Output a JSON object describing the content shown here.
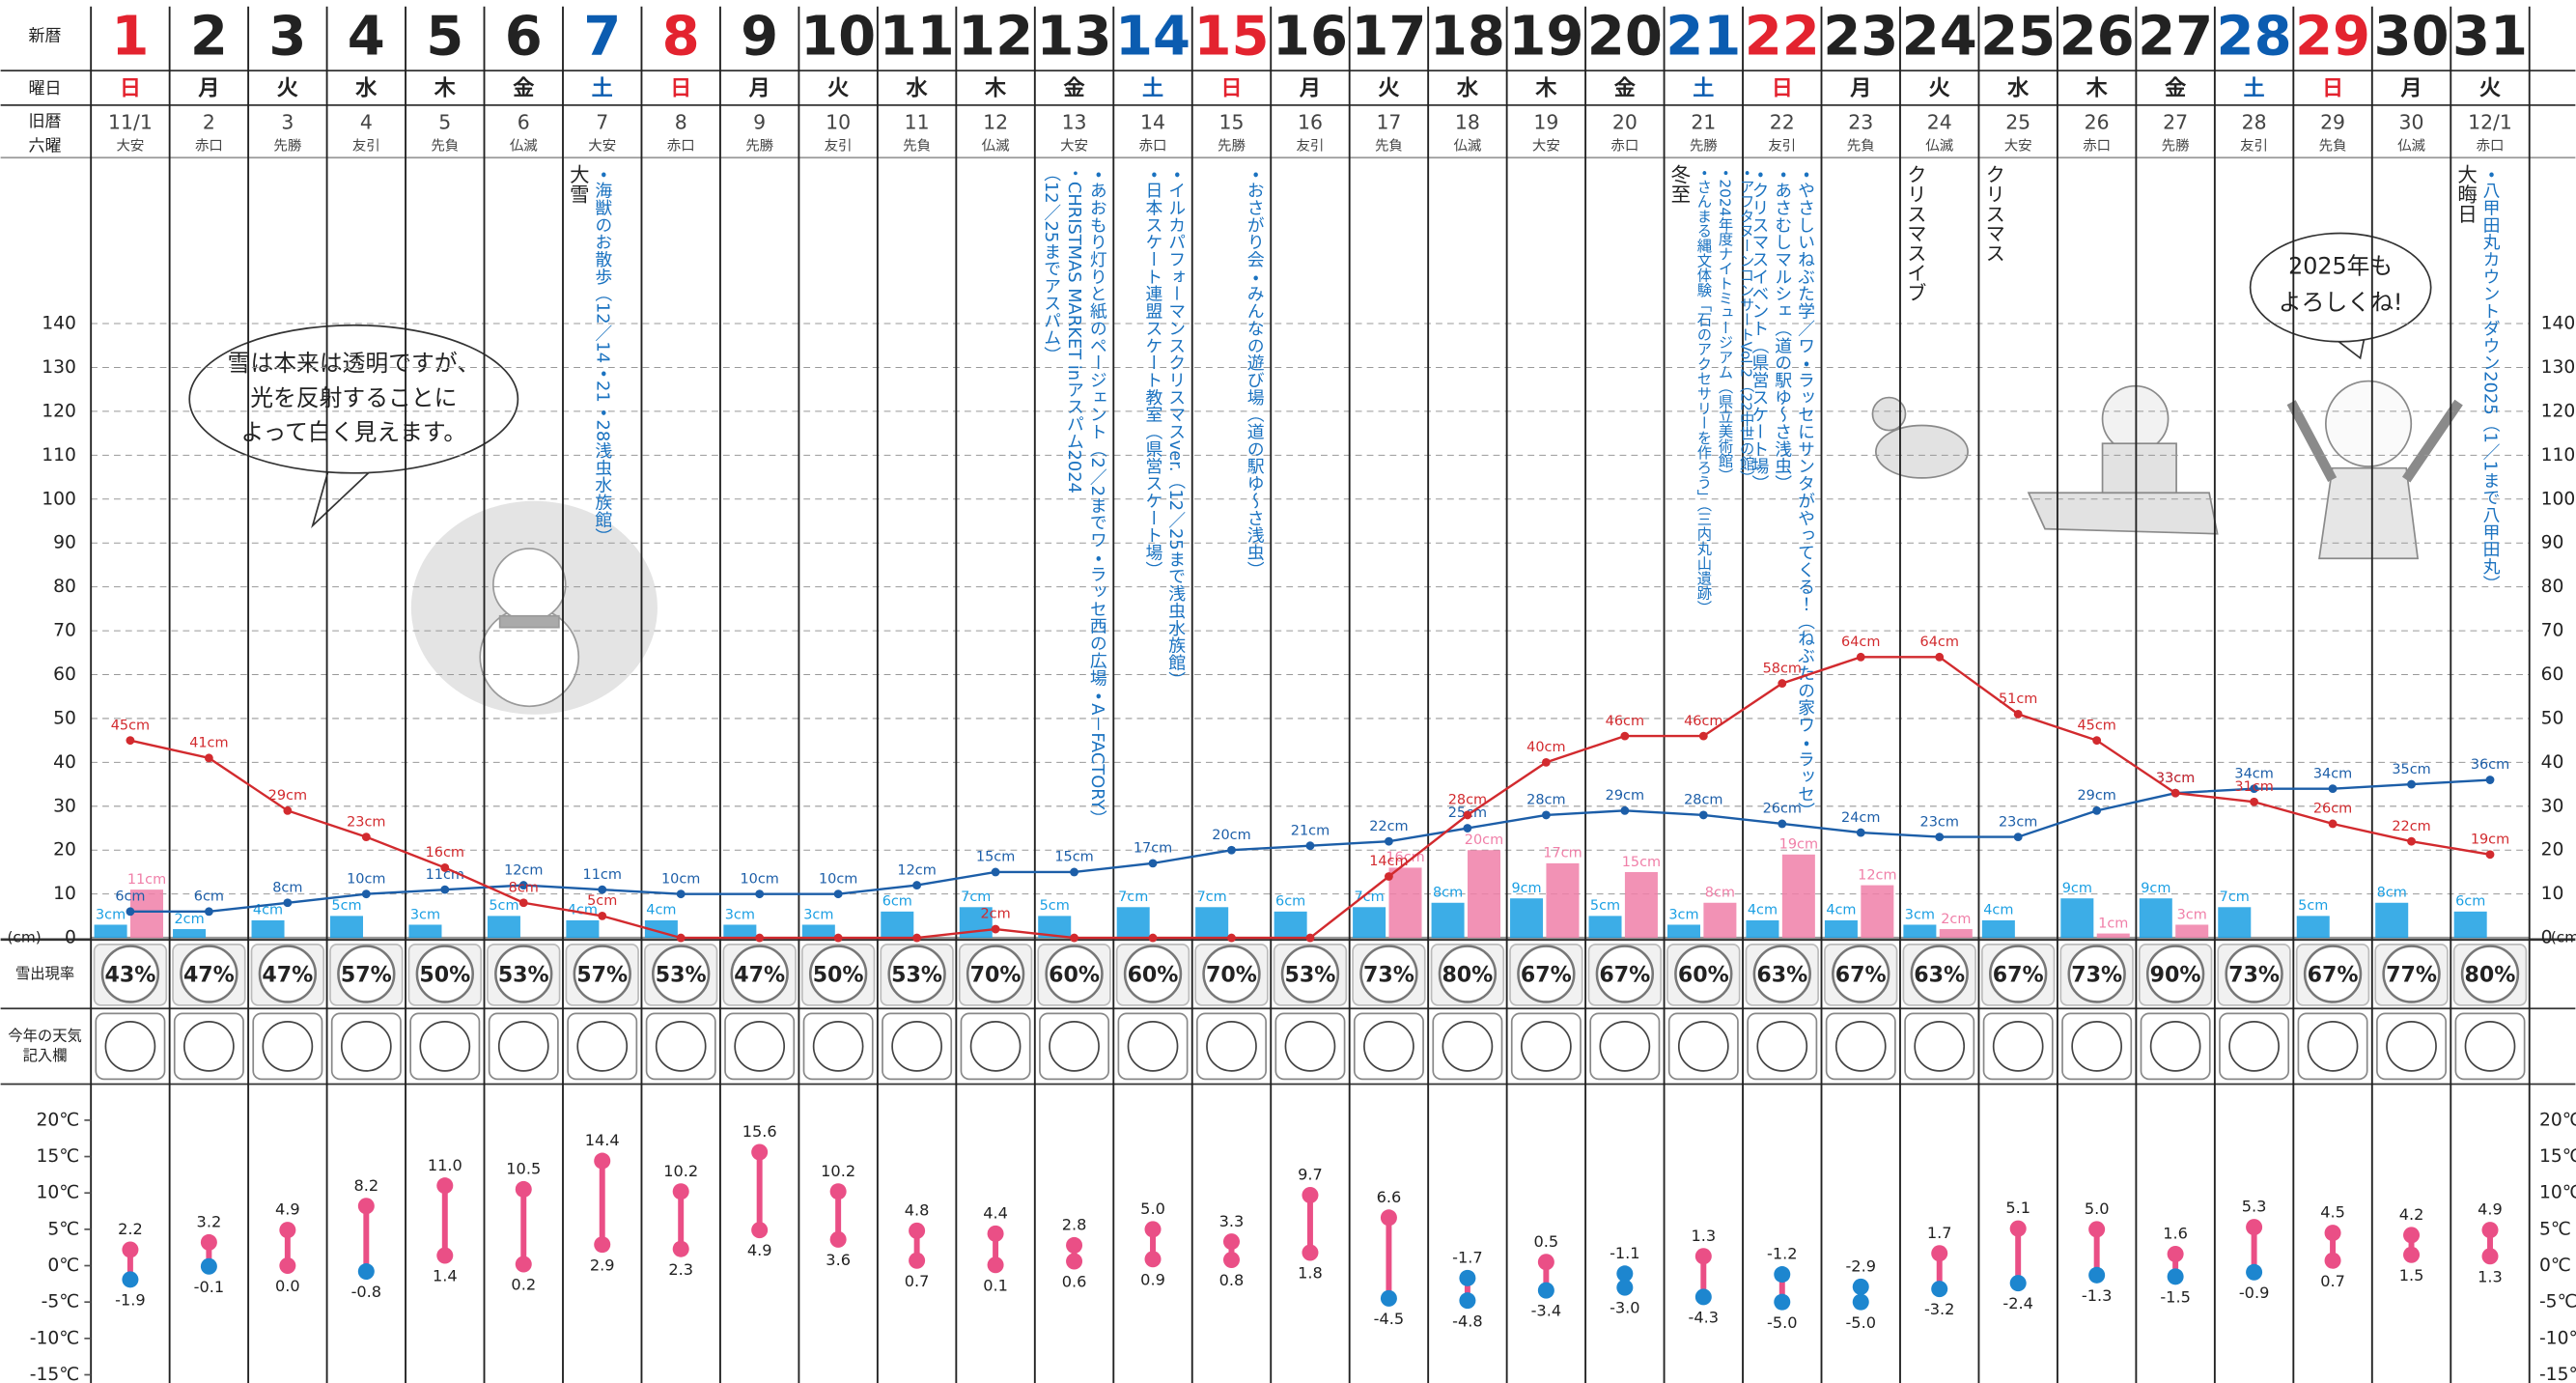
{
  "calendar": {
    "labels": {
      "date": "新暦",
      "weekday": "曜日",
      "kyureki": "旧暦",
      "rokuyo": "六曜",
      "weather": [
        "今年の天気",
        "記入欄"
      ]
    },
    "weekday_colors": {
      "日": "#e3232f",
      "土": "#0b5cb0"
    },
    "weekdays": [
      "日",
      "月",
      "火",
      "水",
      "木",
      "金",
      "土",
      "日",
      "月",
      "火",
      "水",
      "木",
      "金",
      "土",
      "日",
      "月",
      "火",
      "水",
      "木",
      "金",
      "土",
      "日",
      "月",
      "火",
      "水",
      "木",
      "金",
      "土",
      "日",
      "月",
      "火"
    ],
    "kyureki": [
      "11/1",
      "2",
      "3",
      "4",
      "5",
      "6",
      "7",
      "8",
      "9",
      "10",
      "11",
      "12",
      "13",
      "14",
      "15",
      "16",
      "17",
      "18",
      "19",
      "20",
      "21",
      "22",
      "23",
      "24",
      "25",
      "26",
      "27",
      "28",
      "29",
      "30",
      "12/1"
    ],
    "rokuyo": [
      "大安",
      "赤口",
      "先勝",
      "友引",
      "先負",
      "仏滅",
      "大安",
      "赤口",
      "先勝",
      "友引",
      "先負",
      "仏滅",
      "大安",
      "赤口",
      "先勝",
      "友引",
      "先負",
      "仏滅",
      "大安",
      "赤口",
      "先勝",
      "友引",
      "先負",
      "仏滅",
      "大安",
      "赤口",
      "先勝",
      "友引",
      "先負",
      "仏滅",
      "赤口"
    ],
    "notes": [
      null,
      null,
      null,
      null,
      null,
      null,
      "大雪",
      null,
      null,
      null,
      null,
      null,
      null,
      null,
      null,
      null,
      null,
      null,
      null,
      null,
      "冬至",
      null,
      null,
      "クリスマスイブ",
      "クリスマス",
      null,
      null,
      null,
      null,
      null,
      "大晦日"
    ],
    "events": [
      null,
      null,
      null,
      null,
      null,
      null,
      [
        "・海獣のお散歩（12／14・21・28浅虫水族館）"
      ],
      null,
      null,
      null,
      null,
      null,
      [
        "・あおもり灯りと紙のページェント（2／2までワ・ラッセ西の広場・A－FACTORY）",
        "・CHRISTMAS MARKET inアスパム2024",
        "（12／25までアスパム）"
      ],
      [
        "・イルカパフォーマンスクリスマスver.（12／25まで浅虫水族館）",
        "・日本スケート連盟スケート教室（県営スケート場）"
      ],
      [
        "・おさがり会・みんなの遊び場（道の駅ゆ～さ浅虫）"
      ],
      null,
      null,
      null,
      null,
      null,
      [
        "・アフタヌーンコンサートVol.2（22中世の館）",
        "・2024年度ナイトミュージアム（県立美術館）",
        "・さんまる縄文体験「石のアクセサリーを作ろう」（三内丸山遺跡）"
      ],
      [
        "・やさしいねぶた学／ワ・ラッセにサンタがやってくる！（ねぶたの家ワ・ラッセ）",
        "・あさむしマルシェ（道の駅ゆ～さ浅虫）",
        "・クリスマスイベント（県営スケート場）"
      ],
      null,
      null,
      null,
      null,
      null,
      null,
      null,
      null,
      [
        "・八甲田丸カウントダウン2025（1／1まで八甲田丸）"
      ]
    ]
  },
  "bubbles": [
    [
      "雪は本来は透明ですが、",
      "光を反射することに",
      "よって白く見えます。"
    ],
    [
      "2025年も",
      "よろしくね!"
    ]
  ],
  "chart_data": [
    {
      "type": "combo",
      "categories": [
        1,
        2,
        3,
        4,
        5,
        6,
        7,
        8,
        9,
        10,
        11,
        12,
        13,
        14,
        15,
        16,
        17,
        18,
        19,
        20,
        21,
        22,
        23,
        24,
        25,
        26,
        27,
        28,
        29,
        30,
        31
      ],
      "ylim": [
        0,
        140
      ],
      "yticks": [
        0,
        10,
        20,
        30,
        40,
        50,
        60,
        70,
        80,
        90,
        100,
        110,
        120,
        130,
        140
      ],
      "y_unit": "(cm)",
      "grid": true,
      "series": [
        {
          "kind": "bar",
          "color": "#1a9fe3",
          "values": [
            3,
            2,
            4,
            5,
            3,
            5,
            4,
            4,
            3,
            3,
            6,
            7,
            5,
            7,
            7,
            6,
            7,
            8,
            9,
            5,
            3,
            4,
            4,
            3,
            4,
            9,
            9,
            7,
            5,
            8,
            6
          ],
          "value_labels": [
            "3cm",
            "2cm",
            "4cm",
            "5cm",
            "3cm",
            "5cm",
            "4cm",
            "4cm",
            "3cm",
            "3cm",
            "6cm",
            "7cm",
            "5cm",
            "7cm",
            "7cm",
            "6cm",
            "7cm",
            "8cm",
            "9cm",
            "5cm",
            "3cm",
            "4cm",
            "4cm",
            "3cm",
            "4cm",
            "9cm",
            "9cm",
            "7cm",
            "5cm",
            "8cm",
            "6cm"
          ]
        },
        {
          "kind": "bar",
          "color": "#f07fa8",
          "values": [
            11,
            null,
            null,
            null,
            null,
            null,
            null,
            null,
            null,
            null,
            null,
            null,
            null,
            null,
            null,
            null,
            16,
            20,
            17,
            15,
            8,
            19,
            12,
            2,
            null,
            1,
            3,
            null,
            null,
            null,
            null
          ],
          "value_labels": [
            "11cm",
            null,
            null,
            null,
            null,
            null,
            null,
            null,
            null,
            null,
            null,
            null,
            null,
            null,
            null,
            null,
            "16cm",
            "20cm",
            "17cm",
            "15cm",
            "8cm",
            "19cm",
            "12cm",
            "2cm",
            null,
            "1cm",
            "3cm",
            null,
            null,
            null,
            null
          ]
        },
        {
          "kind": "line",
          "color": "#1c5ea8",
          "values": [
            6,
            6,
            8,
            10,
            11,
            12,
            11,
            10,
            10,
            10,
            12,
            15,
            15,
            17,
            20,
            21,
            22,
            25,
            28,
            29,
            28,
            26,
            24,
            23,
            23,
            29,
            33,
            34,
            34,
            35,
            36
          ],
          "value_labels": [
            "6cm",
            "6cm",
            "8cm",
            "10cm",
            "11cm",
            "12cm",
            "11cm",
            "10cm",
            "10cm",
            "10cm",
            "12cm",
            "15cm",
            "15cm",
            "17cm",
            "20cm",
            "21cm",
            "22cm",
            "25cm",
            "28cm",
            "29cm",
            "28cm",
            "26cm",
            "24cm",
            "23cm",
            "23cm",
            "29cm",
            "33cm",
            "34cm",
            "34cm",
            "35cm",
            "36cm"
          ]
        },
        {
          "kind": "line",
          "color": "#d22a2e",
          "values": [
            45,
            41,
            29,
            23,
            16,
            8,
            5,
            0,
            0,
            0,
            0,
            2,
            0,
            0,
            0,
            0,
            14,
            28,
            40,
            46,
            46,
            58,
            64,
            64,
            51,
            45,
            33,
            31,
            26,
            22,
            19
          ],
          "value_labels": [
            "45cm",
            "41cm",
            "29cm",
            "23cm",
            "16cm",
            "8cm",
            "5cm",
            null,
            null,
            null,
            null,
            "2cm",
            null,
            null,
            null,
            null,
            "14cm",
            "28cm",
            "40cm",
            "46cm",
            "46cm",
            "58cm",
            "64cm",
            "64cm",
            "51cm",
            "45cm",
            "33cm",
            "31cm",
            "26cm",
            "22cm",
            "19cm"
          ]
        }
      ]
    },
    {
      "type": "badge",
      "label": "雪出現率",
      "values": [
        43,
        47,
        47,
        57,
        50,
        53,
        57,
        53,
        47,
        50,
        53,
        70,
        60,
        60,
        70,
        53,
        73,
        80,
        67,
        67,
        60,
        63,
        67,
        63,
        67,
        73,
        90,
        73,
        67,
        77,
        80
      ],
      "value_labels": [
        "43%",
        "47%",
        "47%",
        "57%",
        "50%",
        "53%",
        "57%",
        "53%",
        "47%",
        "50%",
        "53%",
        "70%",
        "60%",
        "60%",
        "70%",
        "53%",
        "73%",
        "80%",
        "67%",
        "67%",
        "60%",
        "63%",
        "67%",
        "63%",
        "67%",
        "73%",
        "90%",
        "73%",
        "67%",
        "77%",
        "80%"
      ]
    },
    {
      "type": "range",
      "ylim": [
        -15,
        20
      ],
      "yticks": [
        {
          "value": 20,
          "label": "20℃"
        },
        {
          "value": 15,
          "label": "15℃"
        },
        {
          "value": 10,
          "label": "10℃"
        },
        {
          "value": 5,
          "label": "5℃"
        },
        {
          "value": 0,
          "label": "0℃"
        },
        {
          "value": -5,
          "label": "-5℃"
        },
        {
          "value": -10,
          "label": "-10℃"
        },
        {
          "value": -15,
          "label": "-15℃"
        }
      ],
      "color": "#ea4f86",
      "negative_color": "#1d86cf",
      "series": [
        {
          "values": [
            2.2,
            3.2,
            4.9,
            8.2,
            11.0,
            10.5,
            14.4,
            10.2,
            15.6,
            10.2,
            4.8,
            4.4,
            2.8,
            5.0,
            3.3,
            9.7,
            6.6,
            -1.7,
            0.5,
            -1.1,
            1.3,
            -1.2,
            -2.9,
            1.7,
            5.1,
            5.0,
            1.6,
            5.3,
            4.5,
            4.2,
            4.9
          ],
          "value_labels": [
            "2.2",
            "3.2",
            "4.9",
            "8.2",
            "11.0",
            "10.5",
            "14.4",
            "10.2",
            "15.6",
            "10.2",
            "4.8",
            "4.4",
            "2.8",
            "5.0",
            "3.3",
            "9.7",
            "6.6",
            "-1.7",
            "0.5",
            "-1.1",
            "1.3",
            "-1.2",
            "-2.9",
            "1.7",
            "5.1",
            "5.0",
            "1.6",
            "5.3",
            "4.5",
            "4.2",
            "4.9"
          ]
        },
        {
          "values": [
            -1.9,
            -0.1,
            0.0,
            -0.8,
            1.4,
            0.2,
            2.9,
            2.3,
            4.9,
            3.6,
            0.7,
            0.1,
            0.6,
            0.9,
            0.8,
            1.8,
            -4.5,
            -4.8,
            -3.4,
            -3.0,
            -4.3,
            -5.0,
            -5.0,
            -3.2,
            -2.4,
            -1.3,
            -1.5,
            -0.9,
            0.7,
            1.5,
            1.3
          ],
          "value_labels": [
            "-1.9",
            "-0.1",
            "0.0",
            "-0.8",
            "1.4",
            "0.2",
            "2.9",
            "2.3",
            "4.9",
            "3.6",
            "0.7",
            "0.1",
            "0.6",
            "0.9",
            "0.8",
            "1.8",
            "-4.5",
            "-4.8",
            "-3.4",
            "-3.0",
            "-4.3",
            "-5.0",
            "-5.0",
            "-3.2",
            "-2.4",
            "-1.3",
            "-1.5",
            "-0.9",
            "0.7",
            "1.5",
            "1.3"
          ]
        }
      ]
    }
  ]
}
